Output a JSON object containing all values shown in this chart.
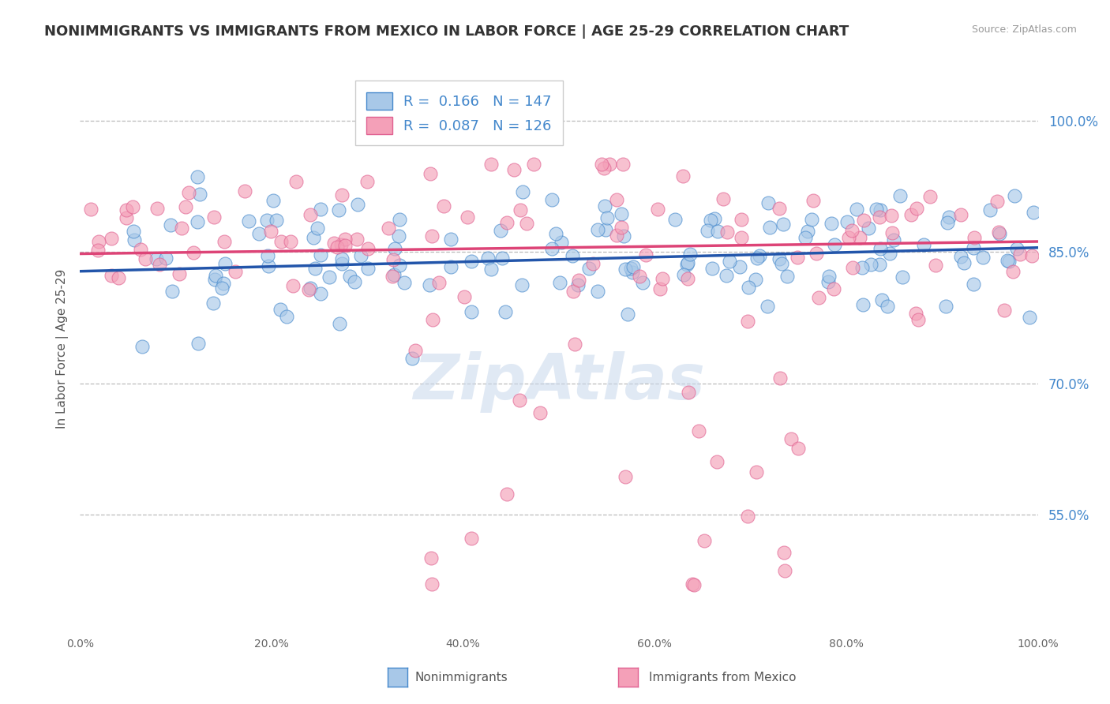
{
  "title": "NONIMMIGRANTS VS IMMIGRANTS FROM MEXICO IN LABOR FORCE | AGE 25-29 CORRELATION CHART",
  "source": "Source: ZipAtlas.com",
  "ylabel": "In Labor Force | Age 25-29",
  "watermark": "ZipAtlas",
  "blue_R": 0.166,
  "blue_N": 147,
  "pink_R": 0.087,
  "pink_N": 126,
  "blue_color": "#a8c8e8",
  "pink_color": "#f4a0b8",
  "blue_edge_color": "#4488cc",
  "pink_edge_color": "#e06090",
  "blue_line_color": "#2255aa",
  "pink_line_color": "#dd4477",
  "legend_label_blue": "Nonimmigrants",
  "legend_label_pink": "Immigrants from Mexico",
  "ytick_labels": [
    "55.0%",
    "70.0%",
    "85.0%",
    "100.0%"
  ],
  "ytick_values": [
    0.55,
    0.7,
    0.85,
    1.0
  ],
  "xmin": 0.0,
  "xmax": 1.0,
  "ymin": 0.42,
  "ymax": 1.06,
  "blue_trend_y_start": 0.828,
  "blue_trend_y_end": 0.855,
  "pink_trend_y_start": 0.848,
  "pink_trend_y_end": 0.862,
  "title_fontsize": 13,
  "source_fontsize": 9,
  "axis_label_fontsize": 11,
  "tick_fontsize": 10,
  "legend_fontsize": 13
}
